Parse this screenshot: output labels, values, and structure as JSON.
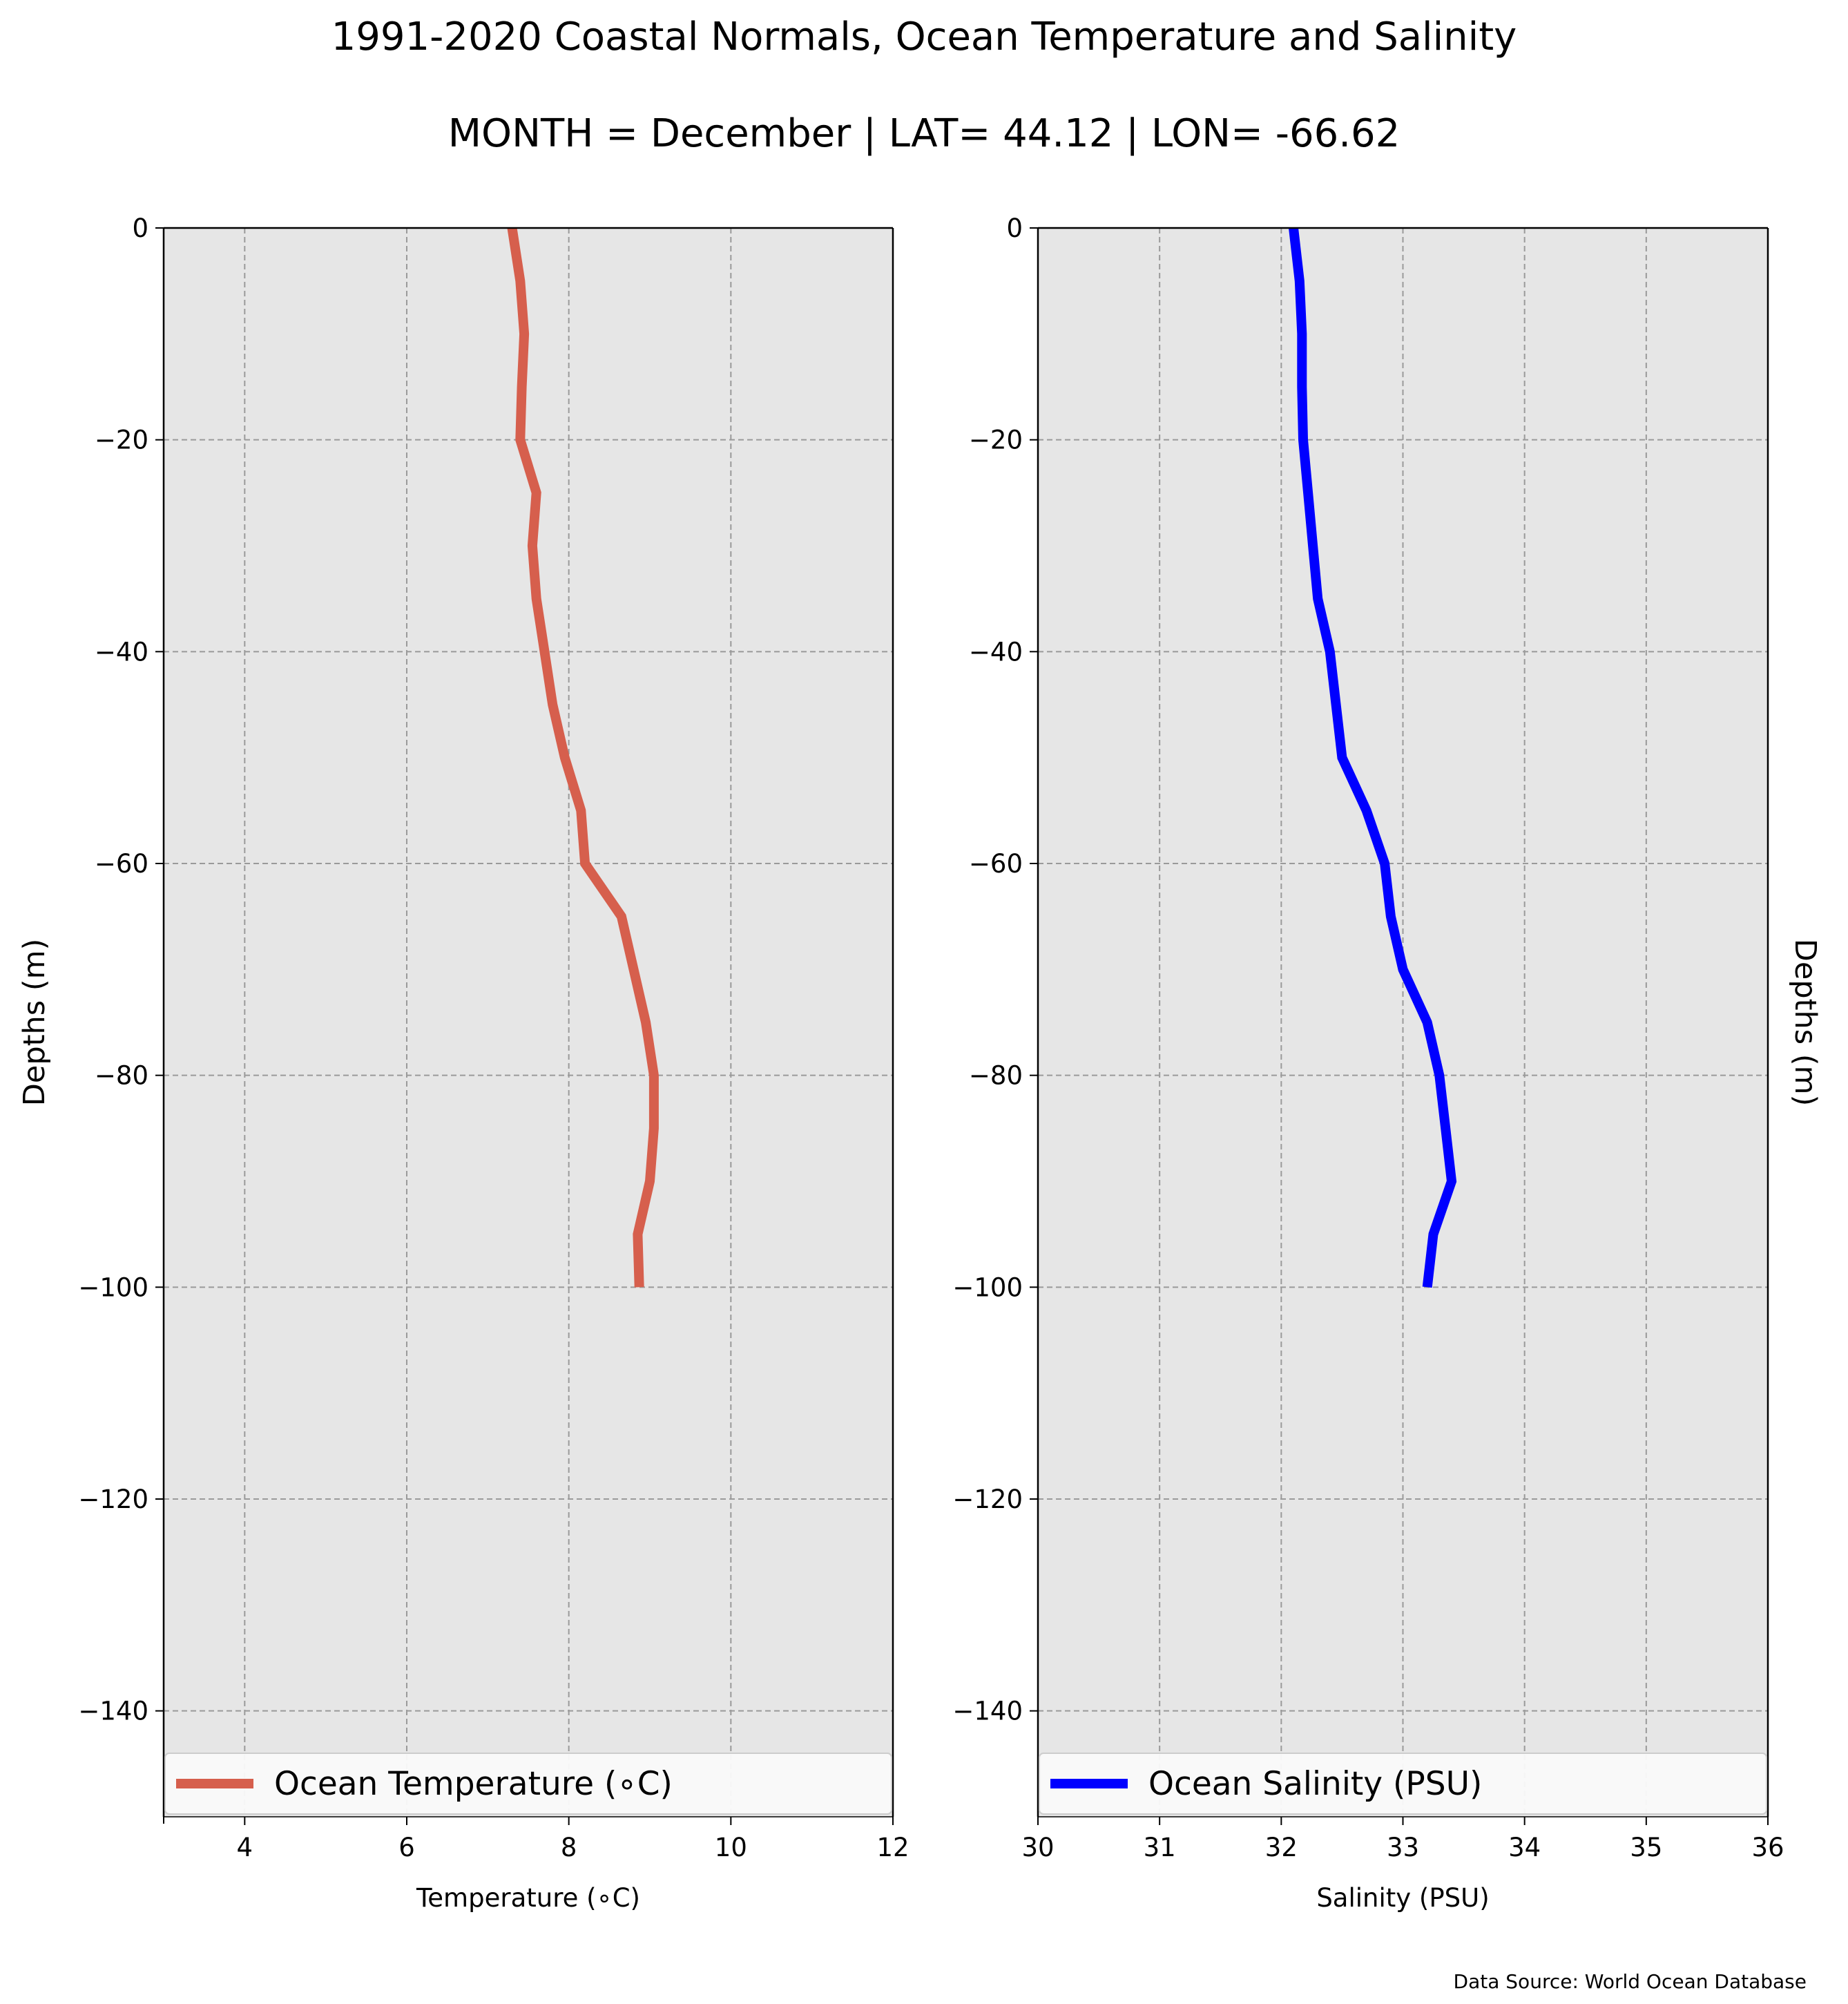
{
  "title": "1991-2020 Coastal Normals, Ocean Temperature and Salinity",
  "subtitle": "MONTH = December | LAT= 44.12 | LON= -66.62",
  "source_note": "Data Source: World Ocean Database",
  "chart_data": [
    {
      "type": "line",
      "xlabel": "Temperature (∘C)",
      "ylabel": "Depths (m)",
      "xlim": [
        3,
        12
      ],
      "ylim": [
        -150,
        0
      ],
      "xticks": [
        4,
        6,
        8,
        10,
        12
      ],
      "yticks": [
        0,
        -20,
        -40,
        -60,
        -80,
        -100,
        -120,
        -140
      ],
      "grid": true,
      "legend_position": "bottom",
      "background": "#e6e6e6",
      "series": [
        {
          "name": "Ocean Temperature (∘C)",
          "color": "#d65f4d",
          "x": [
            7.3,
            7.4,
            7.45,
            7.42,
            7.4,
            7.6,
            7.55,
            7.6,
            7.7,
            7.8,
            7.95,
            8.15,
            8.2,
            8.65,
            8.8,
            8.95,
            9.05,
            9.05,
            9.0,
            8.85,
            8.87
          ],
          "y": [
            0,
            -5,
            -10,
            -15,
            -20,
            -25,
            -30,
            -35,
            -40,
            -45,
            -50,
            -55,
            -60,
            -65,
            -70,
            -75,
            -80,
            -85,
            -90,
            -95,
            -100
          ]
        }
      ]
    },
    {
      "type": "line",
      "xlabel": "Salinity (PSU)",
      "ylabel": "Depths (m)",
      "xlim": [
        30,
        36
      ],
      "ylim": [
        -150,
        0
      ],
      "xticks": [
        30,
        31,
        32,
        33,
        34,
        35,
        36
      ],
      "yticks": [
        0,
        -20,
        -40,
        -60,
        -80,
        -100,
        -120,
        -140
      ],
      "grid": true,
      "legend_position": "bottom",
      "background": "#e6e6e6",
      "series": [
        {
          "name": "Ocean Salinity (PSU)",
          "color": "#0000ff",
          "x": [
            32.1,
            32.15,
            32.17,
            32.17,
            32.18,
            32.22,
            32.26,
            32.3,
            32.4,
            32.45,
            32.5,
            32.7,
            32.85,
            32.9,
            33.0,
            33.2,
            33.3,
            33.35,
            33.4,
            33.25,
            33.2
          ],
          "y": [
            0,
            -5,
            -10,
            -15,
            -20,
            -25,
            -30,
            -35,
            -40,
            -45,
            -50,
            -55,
            -60,
            -65,
            -70,
            -75,
            -80,
            -85,
            -90,
            -95,
            -100
          ]
        }
      ]
    }
  ]
}
